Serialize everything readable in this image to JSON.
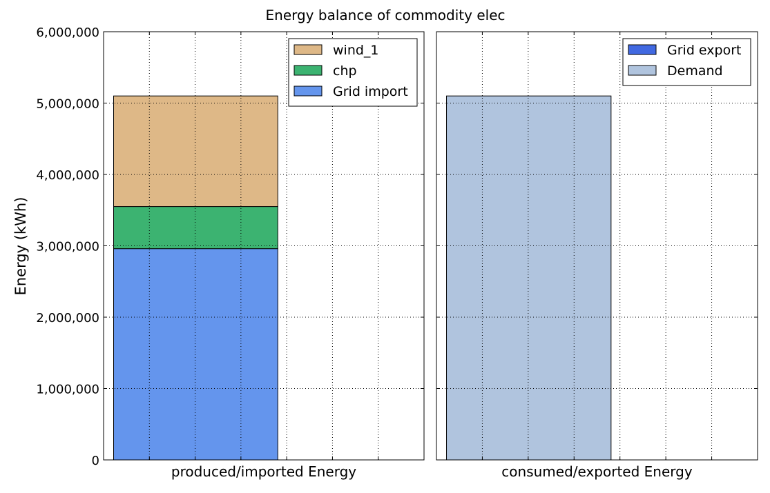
{
  "chart_data": {
    "type": "bar",
    "title": "Energy balance of commodity elec",
    "ylabel": "Energy (kWh)",
    "ylim": [
      0,
      6000000
    ],
    "yticks": [
      {
        "value": 0,
        "label": "0"
      },
      {
        "value": 1000000,
        "label": "1,000,000"
      },
      {
        "value": 2000000,
        "label": "2,000,000"
      },
      {
        "value": 3000000,
        "label": "3,000,000"
      },
      {
        "value": 4000000,
        "label": "4,000,000"
      },
      {
        "value": 5000000,
        "label": "5,000,000"
      },
      {
        "value": 6000000,
        "label": "6,000,000"
      }
    ],
    "grid": true,
    "panels": [
      {
        "xlabel": "produced/imported Energy",
        "legend_position": "top-right",
        "series": [
          {
            "name": "Grid import",
            "value": 2960000,
            "color": "#6495ED"
          },
          {
            "name": "chp",
            "value": 590000,
            "color": "#3CB371"
          },
          {
            "name": "wind_1",
            "value": 1550000,
            "color": "#DEB887"
          }
        ],
        "legend_order": [
          "wind_1",
          "chp",
          "Grid import"
        ]
      },
      {
        "xlabel": "consumed/exported Energy",
        "legend_position": "top-right",
        "series": [
          {
            "name": "Grid export",
            "value": 0,
            "color": "#4169E1"
          },
          {
            "name": "Demand",
            "value": 5100000,
            "color": "#B0C4DE"
          }
        ],
        "legend_order": [
          "Grid export",
          "Demand"
        ]
      }
    ]
  }
}
